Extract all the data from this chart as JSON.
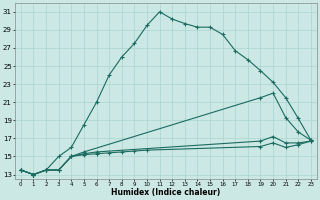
{
  "xlabel": "Humidex (Indice chaleur)",
  "background_color": "#cce8e4",
  "grid_color": "#aad4d0",
  "line_color": "#1a6b60",
  "xlim": [
    -0.5,
    23.5
  ],
  "ylim": [
    12.5,
    32
  ],
  "yticks": [
    13,
    15,
    17,
    19,
    21,
    23,
    25,
    27,
    29,
    31
  ],
  "xticks": [
    0,
    1,
    2,
    3,
    4,
    5,
    6,
    7,
    8,
    9,
    10,
    11,
    12,
    13,
    14,
    15,
    16,
    17,
    18,
    19,
    20,
    21,
    22,
    23
  ],
  "line1_x": [
    0,
    1,
    2,
    3,
    4,
    5,
    6,
    7,
    8,
    9,
    10,
    11,
    12,
    13,
    14,
    15,
    16,
    17,
    18,
    19,
    20,
    21,
    22,
    23
  ],
  "line1_y": [
    13.5,
    13.0,
    13.5,
    15.0,
    16.0,
    18.5,
    21.0,
    24.0,
    26.0,
    27.5,
    29.5,
    31.0,
    30.2,
    29.7,
    29.3,
    29.3,
    28.5,
    26.7,
    25.7,
    24.5,
    23.2,
    21.5,
    19.2,
    16.8
  ],
  "line2_x": [
    0,
    1,
    2,
    3,
    4,
    5,
    19,
    20,
    21,
    22,
    23
  ],
  "line2_y": [
    13.5,
    13.0,
    13.5,
    13.5,
    15.0,
    15.5,
    21.5,
    22.0,
    19.3,
    17.7,
    16.8
  ],
  "line3_x": [
    0,
    1,
    2,
    3,
    4,
    5,
    6,
    19,
    20,
    21,
    22,
    23
  ],
  "line3_y": [
    13.5,
    13.0,
    13.5,
    13.5,
    15.0,
    15.3,
    15.5,
    16.7,
    17.2,
    16.5,
    16.5,
    16.7
  ],
  "line4_x": [
    0,
    1,
    2,
    3,
    4,
    5,
    6,
    7,
    8,
    9,
    10,
    19,
    20,
    21,
    22,
    23
  ],
  "line4_y": [
    13.5,
    13.0,
    13.5,
    13.5,
    15.0,
    15.2,
    15.3,
    15.4,
    15.5,
    15.6,
    15.7,
    16.1,
    16.5,
    16.0,
    16.3,
    16.7
  ]
}
